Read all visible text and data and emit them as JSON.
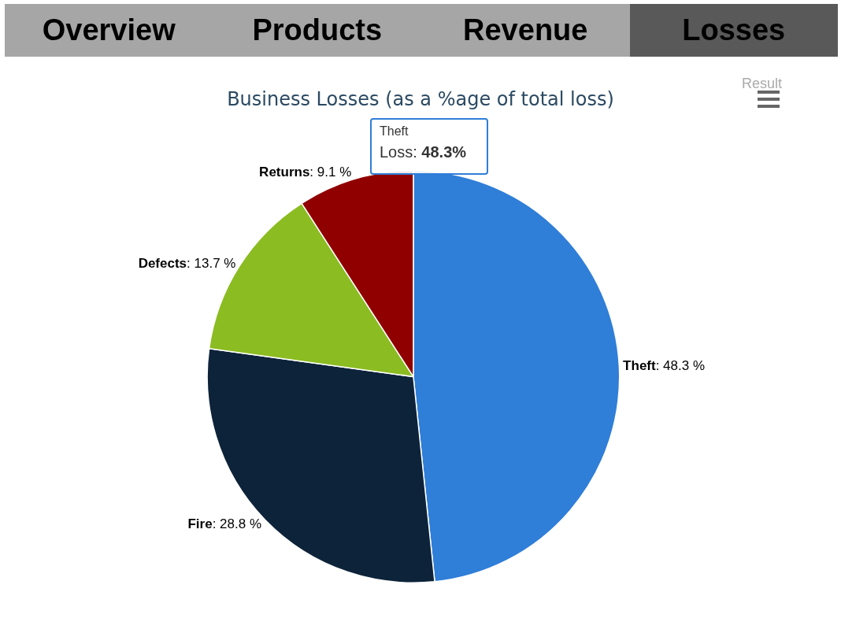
{
  "chart_data": {
    "type": "pie",
    "title": "Business Losses (as a %age of total loss)",
    "categories": [
      "Theft",
      "Fire",
      "Defects",
      "Returns"
    ],
    "values": [
      48.3,
      28.8,
      13.7,
      9.1
    ],
    "value_labels": [
      ": 48.3 %",
      ": 28.8 %",
      ": 13.7 %",
      ": 9.1 %"
    ],
    "colors": [
      "#2f7ed8",
      "#0d233a",
      "#8bbc21",
      "#910000"
    ],
    "legend": false,
    "annotations": [
      "Overview",
      "Products",
      "Revenue",
      "Losses",
      "Result",
      "Theft",
      "Loss: 48.3%"
    ]
  }
}
